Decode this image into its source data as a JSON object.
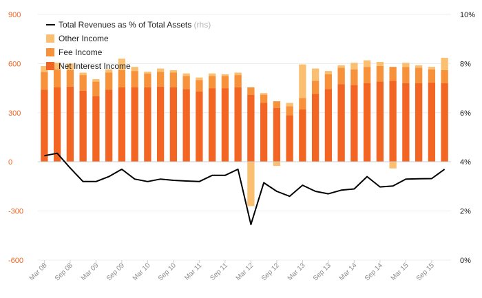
{
  "chart_data": {
    "type": "bar",
    "stacked": true,
    "x_tick_labels": [
      "Mar 08",
      "Sep 08",
      "Mar 09",
      "Sep 09",
      "Mar 10",
      "Sep 10",
      "Mar 11",
      "Sep 11",
      "Mar 12",
      "Sep 12",
      "Mar 13",
      "Sep 13",
      "Mar 14",
      "Sep 14",
      "Mar 15",
      "Sep 15"
    ],
    "num_periods": 32,
    "series": [
      {
        "name": "Net Interest Income",
        "color": "#f26522",
        "axis": "left",
        "values": [
          440,
          455,
          460,
          435,
          400,
          440,
          455,
          455,
          455,
          460,
          455,
          445,
          430,
          450,
          450,
          455,
          410,
          360,
          330,
          285,
          320,
          415,
          445,
          475,
          470,
          480,
          490,
          495,
          480,
          480,
          485,
          480
        ]
      },
      {
        "name": "Fee Income",
        "color": "#f7923a",
        "axis": "left",
        "values": [
          110,
          110,
          100,
          95,
          90,
          105,
          105,
          100,
          85,
          90,
          90,
          80,
          70,
          75,
          75,
          75,
          45,
          50,
          40,
          55,
          70,
          80,
          90,
          100,
          95,
          100,
          95,
          85,
          100,
          95,
          80,
          80
        ]
      },
      {
        "name": "Other Income",
        "color": "#fbbf71",
        "axis": "left",
        "values": [
          35,
          40,
          40,
          15,
          15,
          20,
          70,
          25,
          10,
          20,
          15,
          15,
          15,
          15,
          10,
          15,
          -270,
          10,
          -25,
          20,
          205,
          75,
          20,
          15,
          40,
          40,
          25,
          -40,
          25,
          15,
          15,
          75
        ]
      },
      {
        "name": "Total Revenues as % of Total Assets",
        "legend_note": "(rhs)",
        "color": "#000000",
        "axis": "right",
        "kind": "line",
        "values": [
          4.25,
          4.35,
          3.75,
          3.2,
          3.2,
          3.4,
          3.7,
          3.3,
          3.2,
          3.3,
          3.25,
          3.22,
          3.2,
          3.45,
          3.45,
          3.7,
          1.45,
          3.15,
          2.8,
          2.6,
          3.05,
          2.8,
          2.7,
          2.85,
          2.9,
          3.4,
          2.98,
          3.02,
          3.3,
          3.31,
          3.32,
          3.7
        ]
      }
    ],
    "legend_order": [
      "Total Revenues as % of Total Assets",
      "Other Income",
      "Fee Income",
      "Net Interest Income"
    ],
    "left_axis": {
      "min": -600,
      "max": 900,
      "ticks": [
        "900",
        "600",
        "300",
        "0",
        "-300",
        "-600"
      ]
    },
    "right_axis": {
      "min": 0,
      "max": 10,
      "ticks": [
        "10%",
        "8%",
        "6%",
        "4%",
        "2%",
        "0%"
      ]
    },
    "grid": true,
    "legend_position": "top-left"
  }
}
